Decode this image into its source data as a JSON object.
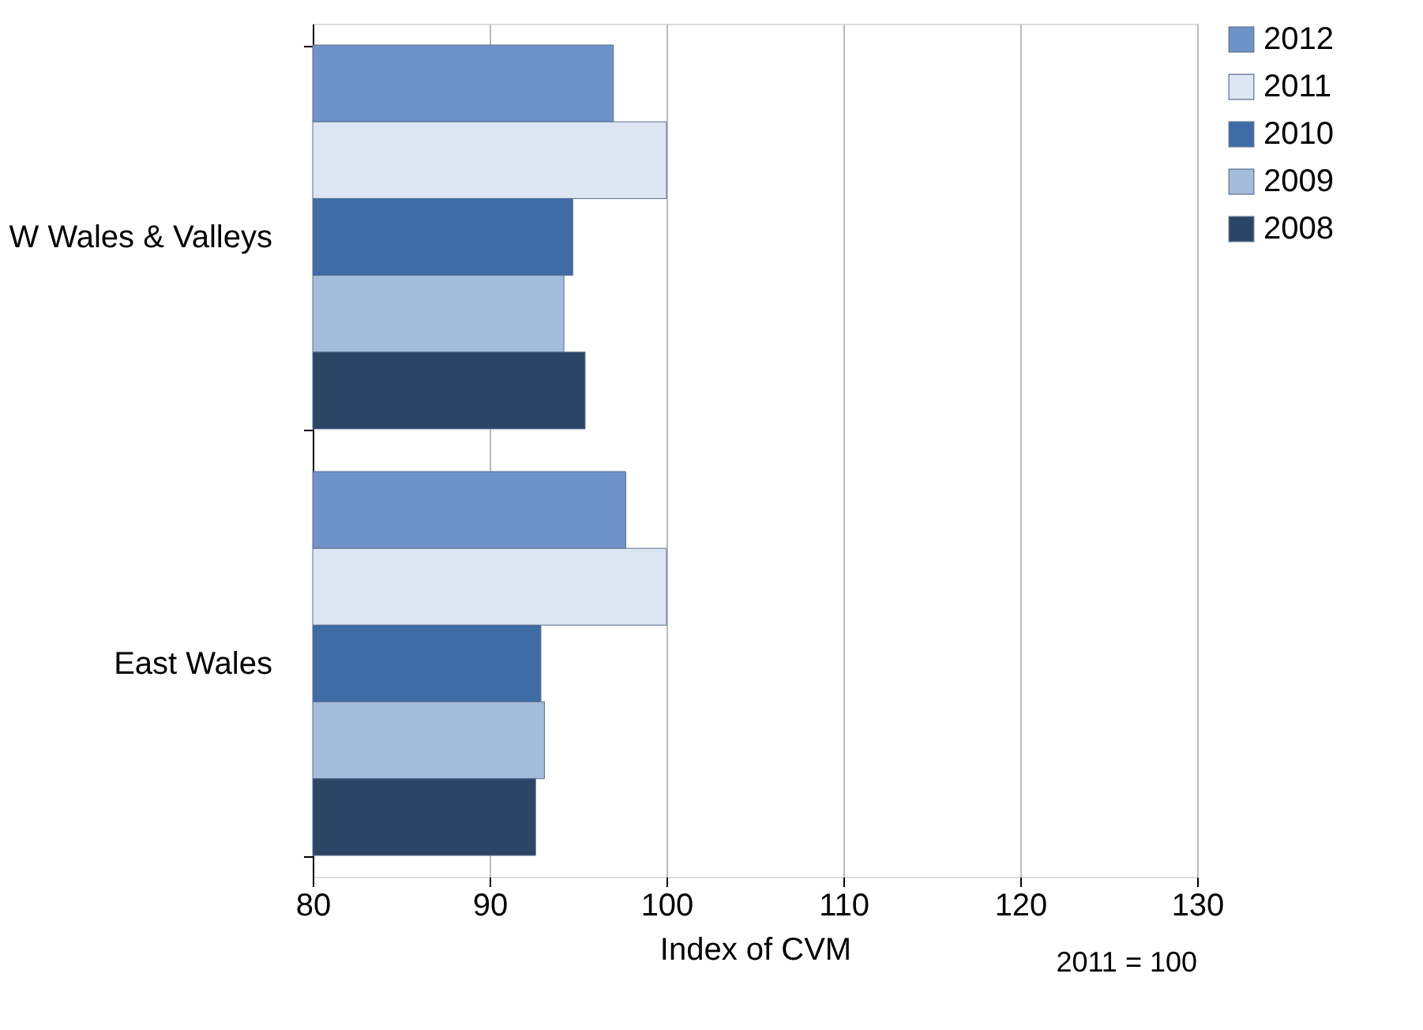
{
  "chart_data": {
    "type": "bar",
    "orientation": "horizontal",
    "categories": [
      "W Wales & Valleys",
      "East Wales"
    ],
    "xlabel": "Index of CVM",
    "annotations": [
      "2011 = 100"
    ],
    "series": [
      {
        "name": "2012",
        "color": "#6f93c6",
        "values": [
          97.0,
          97.7
        ]
      },
      {
        "name": "2011",
        "color": "#dce6f2",
        "values": [
          100,
          100
        ]
      },
      {
        "name": "2010",
        "color": "#3f6ca6",
        "values": [
          94.7,
          92.9
        ]
      },
      {
        "name": "2009",
        "color": "#a5bcdb",
        "values": [
          94.2,
          93.1
        ]
      },
      {
        "name": "2008",
        "color": "#2b4566",
        "values": [
          95.4,
          92.6
        ]
      }
    ],
    "xlim": [
      80,
      130
    ],
    "xticks": [
      80,
      90,
      100,
      110,
      120,
      130
    ],
    "grid": "x",
    "legend": "right"
  }
}
